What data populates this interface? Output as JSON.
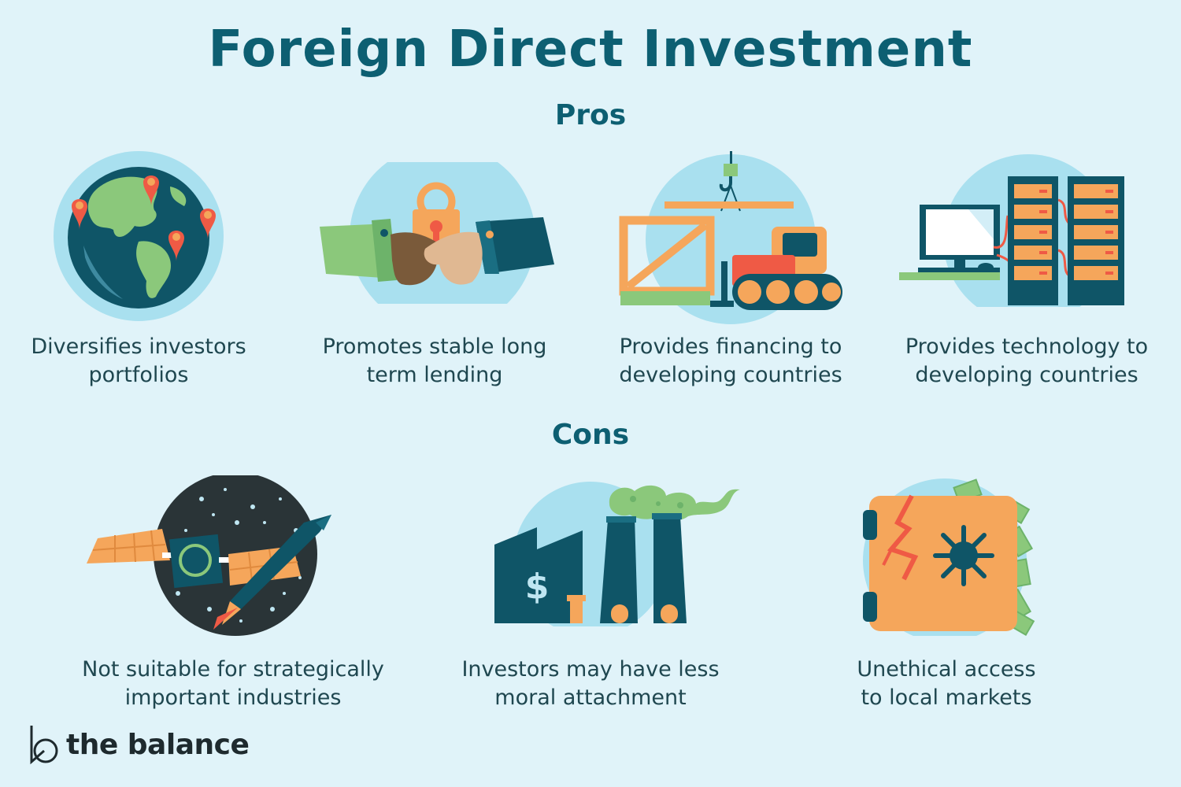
{
  "title": "Foreign Direct Investment",
  "pros": {
    "heading": "Pros",
    "items": [
      {
        "icon": "globe-icon",
        "line1": "Diversifies investors",
        "line2": "portfolios"
      },
      {
        "icon": "handshake-icon",
        "line1": "Promotes stable long",
        "line2": "term lending"
      },
      {
        "icon": "bulldozer-icon",
        "line1": "Provides financing to",
        "line2": "developing countries"
      },
      {
        "icon": "computer-server-icon",
        "line1": "Provides technology to",
        "line2": "developing countries"
      }
    ]
  },
  "cons": {
    "heading": "Cons",
    "items": [
      {
        "icon": "satellite-rocket-icon",
        "line1": "Not suitable for strategically",
        "line2": "important industries"
      },
      {
        "icon": "factory-icon",
        "line1": "Investors may have less",
        "line2": "moral attachment"
      },
      {
        "icon": "broken-safe-icon",
        "line1": "Unethical access",
        "line2": "to local markets"
      }
    ]
  },
  "factory_sign": "$",
  "brand": {
    "name": "the balance"
  },
  "colors": {
    "background": "#e0f3f9",
    "heading": "#0d5f72",
    "circle": "#a9e0ef",
    "navy": "#0f5567",
    "orange": "#f5a65b",
    "green": "#8bc87b",
    "red": "#ef5a45"
  }
}
